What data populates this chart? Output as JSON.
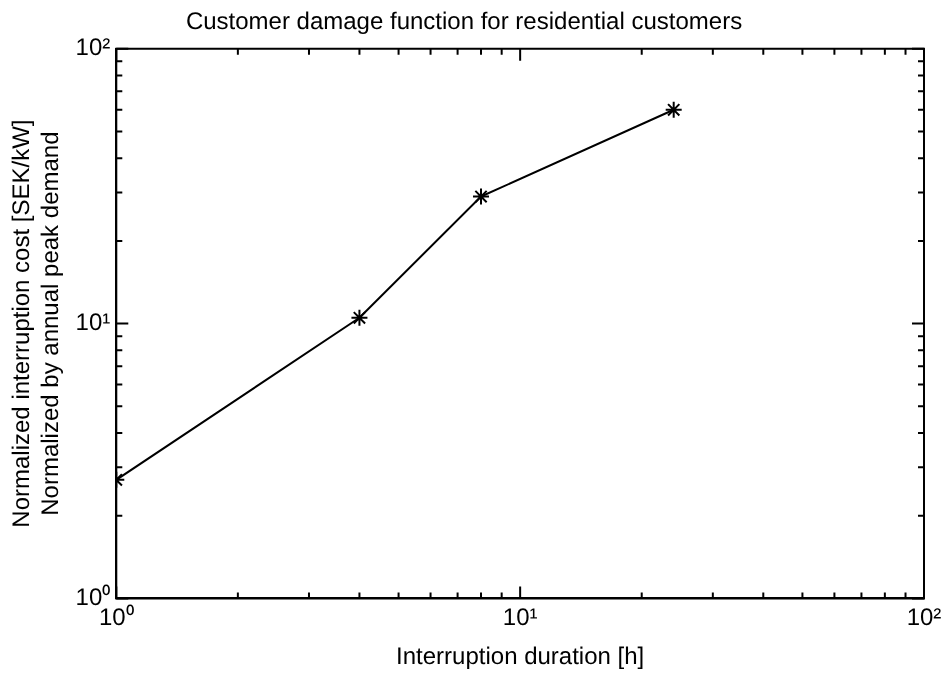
{
  "chart_data": {
    "type": "line",
    "title": "Customer damage function for residential customers",
    "xlabel": "Interruption duration [h]",
    "ylabel": "Normalized interruption cost [SEK/kW]\nNormalized by annual peak demand",
    "x": [
      1,
      4,
      8,
      24
    ],
    "series": [
      {
        "color": "#000000",
        "values": [
          2.7,
          10.5,
          29,
          60
        ]
      }
    ],
    "log": "xy",
    "xlim": [
      1,
      100
    ],
    "ylim": [
      1,
      100
    ],
    "xticks": [
      {
        "value": 1,
        "label": "10⁰"
      },
      {
        "value": 2,
        "label": null
      },
      {
        "value": 3,
        "label": null
      },
      {
        "value": 4,
        "label": null
      },
      {
        "value": 5,
        "label": null
      },
      {
        "value": 6,
        "label": null
      },
      {
        "value": 7,
        "label": null
      },
      {
        "value": 8,
        "label": null
      },
      {
        "value": 9,
        "label": null
      },
      {
        "value": 10,
        "label": "10¹"
      },
      {
        "value": 20,
        "label": null
      },
      {
        "value": 30,
        "label": null
      },
      {
        "value": 40,
        "label": null
      },
      {
        "value": 50,
        "label": null
      },
      {
        "value": 60,
        "label": null
      },
      {
        "value": 70,
        "label": null
      },
      {
        "value": 80,
        "label": null
      },
      {
        "value": 90,
        "label": null
      },
      {
        "value": 100,
        "label": "10²"
      }
    ],
    "yticks": [
      {
        "value": 1,
        "label": "10⁰"
      },
      {
        "value": 2,
        "label": null
      },
      {
        "value": 3,
        "label": null
      },
      {
        "value": 4,
        "label": null
      },
      {
        "value": 5,
        "label": null
      },
      {
        "value": 6,
        "label": null
      },
      {
        "value": 7,
        "label": null
      },
      {
        "value": 8,
        "label": null
      },
      {
        "value": 9,
        "label": null
      },
      {
        "value": 10,
        "label": "10¹"
      },
      {
        "value": 20,
        "label": null
      },
      {
        "value": 30,
        "label": null
      },
      {
        "value": 40,
        "label": null
      },
      {
        "value": 50,
        "label": null
      },
      {
        "value": 60,
        "label": null
      },
      {
        "value": 70,
        "label": null
      },
      {
        "value": 80,
        "label": null
      },
      {
        "value": 90,
        "label": null
      },
      {
        "value": 100,
        "label": "10²"
      }
    ],
    "grid": false,
    "legend": false,
    "marker": "cross",
    "line_style": "solid"
  }
}
